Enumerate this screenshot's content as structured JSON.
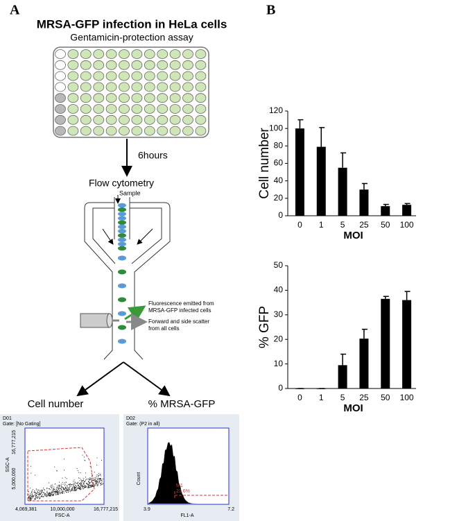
{
  "panel_labels": [
    "A",
    "B"
  ],
  "diagram": {
    "title": "MRSA-GFP infection in HeLa cells",
    "subtitle": "Gentamicin-protection assay",
    "step_label": "6hours",
    "method": "Flow cytometry",
    "sample_label": "Sample",
    "fluorescence_note": [
      "Fluorescence emitted from",
      "MRSA-GFP infected cells"
    ],
    "scatter_note": [
      "Forward and side scatter",
      "from all cells"
    ],
    "outputs": [
      "Cell number",
      "% MRSA-GFP"
    ],
    "scatter_plot": {
      "id": "D01",
      "gate": "Gate: [No Gating]",
      "y_label": "SSC-A",
      "x_label": "FSC-A",
      "y_ticks": [
        "16,777,215",
        "5,000,000"
      ],
      "x_ticks": [
        "4,069,381",
        "10,000,000",
        "16,777,215"
      ]
    },
    "histogram": {
      "id": "D02",
      "gate": "Gate: (P2 in all)",
      "y_label": "Count",
      "x_label": "FL1-A",
      "x_ticks": [
        "3.9",
        "7.2"
      ],
      "marker": "M1",
      "marker_value": "21.6%"
    }
  },
  "chart_data": [
    {
      "type": "bar",
      "categories": [
        "0",
        "1",
        "5",
        "25",
        "50",
        "100"
      ],
      "values": [
        100,
        79,
        55,
        30,
        11,
        12.5
      ],
      "errors": [
        10,
        22,
        17,
        7,
        2,
        1.5
      ],
      "color": "#000000",
      "ylim": [
        0,
        120
      ],
      "yticks": [
        0,
        20,
        40,
        60,
        80,
        100,
        120
      ],
      "ylabel": "Cell number",
      "xlabel": "MOI"
    },
    {
      "type": "bar",
      "categories": [
        "0",
        "1",
        "5",
        "25",
        "50",
        "100"
      ],
      "values": [
        0,
        0,
        9.5,
        20.3,
        36.5,
        36
      ],
      "errors": [
        0,
        0,
        4.5,
        3.8,
        1,
        3.5
      ],
      "color": "#000000",
      "ylim": [
        0,
        50
      ],
      "yticks": [
        0,
        10,
        20,
        30,
        40,
        50
      ],
      "ylabel": "% GFP",
      "xlabel": "MOI"
    }
  ]
}
